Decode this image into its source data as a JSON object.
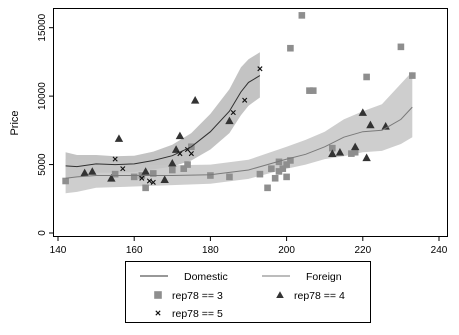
{
  "chart_data": {
    "type": "scatter",
    "title": "",
    "xlabel": "",
    "ylabel": "Price",
    "xlim": [
      138,
      240
    ],
    "ylim": [
      -500,
      16500
    ],
    "x_ticks": [
      140,
      160,
      180,
      200,
      220,
      240
    ],
    "y_ticks": [
      0,
      5000,
      10000,
      15000
    ],
    "grid": false,
    "legend_position": "bottom",
    "colors": {
      "domestic_band": "#b9b9b9",
      "foreign_band": "#c6c6c6",
      "domestic_line": "#303030",
      "foreign_line": "#7a7a7a",
      "rep3_marker": "#8e8e8e",
      "rep4_marker": "#333333",
      "rep5_marker": "#111111"
    },
    "series": [
      {
        "name": "rep78 == 3",
        "kind": "points",
        "marker": "square",
        "points": [
          [
            142,
            3800
          ],
          [
            155,
            4300
          ],
          [
            160,
            4100
          ],
          [
            162,
            4200
          ],
          [
            165,
            4350
          ],
          [
            170,
            4600
          ],
          [
            173,
            4700
          ],
          [
            174,
            5000
          ],
          [
            175,
            6300
          ],
          [
            180,
            4200
          ],
          [
            185,
            4100
          ],
          [
            193,
            4300
          ],
          [
            195,
            3300
          ],
          [
            196,
            4700
          ],
          [
            197,
            4000
          ],
          [
            198,
            4500
          ],
          [
            198,
            5200
          ],
          [
            199,
            4700
          ],
          [
            200,
            4100
          ],
          [
            200,
            5000
          ],
          [
            201,
            5300
          ],
          [
            201,
            13500
          ],
          [
            204,
            15900
          ],
          [
            206,
            10400
          ],
          [
            207,
            10400
          ],
          [
            212,
            6200
          ],
          [
            217,
            5800
          ],
          [
            218,
            5900
          ],
          [
            221,
            11400
          ],
          [
            230,
            13600
          ],
          [
            233,
            11500
          ],
          [
            163,
            3300
          ]
        ]
      },
      {
        "name": "rep78 == 4",
        "kind": "points",
        "marker": "triangle",
        "points": [
          [
            147,
            4400
          ],
          [
            149,
            4500
          ],
          [
            154,
            4000
          ],
          [
            156,
            6900
          ],
          [
            163,
            4500
          ],
          [
            168,
            3900
          ],
          [
            170,
            5100
          ],
          [
            171,
            6100
          ],
          [
            172,
            7100
          ],
          [
            176,
            9700
          ],
          [
            185,
            8200
          ],
          [
            212,
            5800
          ],
          [
            214,
            5900
          ],
          [
            218,
            6300
          ],
          [
            220,
            8800
          ],
          [
            221,
            5500
          ],
          [
            222,
            7900
          ],
          [
            226,
            7800
          ]
        ]
      },
      {
        "name": "rep78 == 5",
        "kind": "points",
        "marker": "x",
        "points": [
          [
            155,
            5400
          ],
          [
            157,
            4700
          ],
          [
            162,
            4000
          ],
          [
            164,
            3800
          ],
          [
            165,
            3700
          ],
          [
            172,
            5800
          ],
          [
            174,
            6100
          ],
          [
            175,
            5800
          ],
          [
            186,
            8800
          ],
          [
            189,
            9700
          ],
          [
            193,
            12000
          ]
        ]
      },
      {
        "name": "Domestic",
        "kind": "smooth",
        "x": [
          142,
          145,
          150,
          155,
          160,
          165,
          170,
          175,
          180,
          185,
          188,
          190,
          193
        ],
        "y": [
          4900,
          4850,
          5050,
          5000,
          5050,
          5300,
          5650,
          6300,
          7400,
          8900,
          10300,
          11000,
          11500
        ],
        "lower": [
          3900,
          4100,
          4400,
          4400,
          4450,
          4650,
          4850,
          5300,
          6100,
          7300,
          8600,
          9300,
          9900
        ],
        "upper": [
          5900,
          5700,
          5700,
          5600,
          5650,
          5950,
          6450,
          7300,
          8700,
          10500,
          12100,
          12700,
          13200
        ]
      },
      {
        "name": "Foreign",
        "kind": "smooth",
        "x": [
          142,
          145,
          150,
          160,
          170,
          180,
          190,
          200,
          205,
          210,
          215,
          220,
          225,
          230,
          233
        ],
        "y": [
          4000,
          4100,
          4200,
          4200,
          4200,
          4250,
          4600,
          5400,
          5750,
          6300,
          7000,
          7400,
          7500,
          8300,
          9200
        ],
        "lower": [
          2900,
          3000,
          3300,
          3400,
          3500,
          3600,
          3950,
          4700,
          5000,
          5400,
          5600,
          5900,
          6000,
          6500,
          7000
        ],
        "upper": [
          5400,
          5400,
          5300,
          5000,
          4950,
          5000,
          5350,
          6300,
          6800,
          7400,
          8300,
          8900,
          9400,
          10900,
          11800
        ]
      }
    ],
    "legend": [
      {
        "label": "Domestic",
        "symbol": "line",
        "series": "Domestic"
      },
      {
        "label": "Foreign",
        "symbol": "line",
        "series": "Foreign"
      },
      {
        "label": "rep78 == 3",
        "symbol": "square",
        "series": "rep78 == 3"
      },
      {
        "label": "rep78 == 4",
        "symbol": "triangle",
        "series": "rep78 == 4"
      },
      {
        "label": "rep78 == 5",
        "symbol": "x",
        "series": "rep78 == 5"
      }
    ]
  }
}
